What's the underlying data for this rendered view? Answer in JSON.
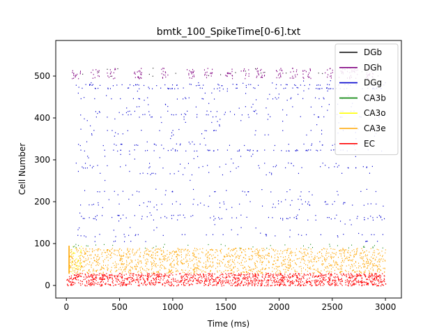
{
  "chart_data": {
    "type": "scatter",
    "title": "bmtk_100_SpikeTime[0-6].txt",
    "xlabel": "Time (ms)",
    "ylabel": "Cell Number",
    "xlim": [
      -100,
      3150
    ],
    "ylim": [
      -30,
      585
    ],
    "xticks": [
      0,
      500,
      1000,
      1500,
      2000,
      2500,
      3000
    ],
    "yticks": [
      0,
      100,
      200,
      300,
      400,
      500
    ],
    "grid": false,
    "legend_position": "top-right",
    "series": [
      {
        "name": "DGb",
        "color": "#000000",
        "cells": [
          500,
          520
        ],
        "time": [
          80,
          3000
        ],
        "marker": "raster",
        "density": "sparse"
      },
      {
        "name": "DGh",
        "color": "#800080",
        "cells": [
          490,
          520
        ],
        "time": [
          80,
          2900
        ],
        "marker": "raster",
        "density": "bursts"
      },
      {
        "name": "DGg",
        "color": "#0000cd",
        "cells": [
          100,
          490
        ],
        "time": [
          80,
          3000
        ],
        "marker": "raster",
        "density": "banded"
      },
      {
        "name": "CA3b",
        "color": "#008000",
        "cells": [
          90,
          100
        ],
        "time": [
          0,
          3000
        ],
        "marker": "raster",
        "density": "sparse"
      },
      {
        "name": "CA3o",
        "color": "#ffff00",
        "cells": [
          28,
          95
        ],
        "time": [
          20,
          30
        ],
        "marker": "raster",
        "density": "onset"
      },
      {
        "name": "CA3e",
        "color": "#ffa500",
        "cells": [
          30,
          90
        ],
        "time": [
          20,
          3000
        ],
        "marker": "raster",
        "density": "dense"
      },
      {
        "name": "EC",
        "color": "#ff0000",
        "cells": [
          0,
          30
        ],
        "time": [
          0,
          3000
        ],
        "marker": "raster",
        "density": "dense"
      }
    ]
  }
}
